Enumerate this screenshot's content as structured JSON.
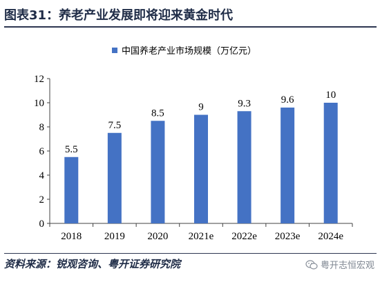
{
  "header": {
    "title": "图表31：养老产业发展即将迎来黄金时代"
  },
  "footer": {
    "source": "资料来源：锐观咨询、粤开证券研究院",
    "watermark": "粤开志恒宏观",
    "watermark_icon": "wechat-icon"
  },
  "colors": {
    "bar": "#4472C4",
    "axis": "#404040",
    "text": "#1f2c47"
  },
  "chart_data": {
    "type": "bar",
    "categories": [
      "2018",
      "2019",
      "2020",
      "2021e",
      "2022e",
      "2023e",
      "2024e"
    ],
    "series": [
      {
        "name": "中国养老产业市场规模（万亿元）",
        "values": [
          5.5,
          7.5,
          8.5,
          9,
          9.3,
          9.6,
          10
        ]
      }
    ],
    "data_labels": [
      "5.5",
      "7.5",
      "8.5",
      "9",
      "9.3",
      "9.6",
      "10"
    ],
    "yticks": [
      "0",
      "2",
      "4",
      "6",
      "8",
      "10",
      "12"
    ],
    "ylim": [
      0,
      12
    ],
    "grid": false,
    "legend_position": "top"
  }
}
